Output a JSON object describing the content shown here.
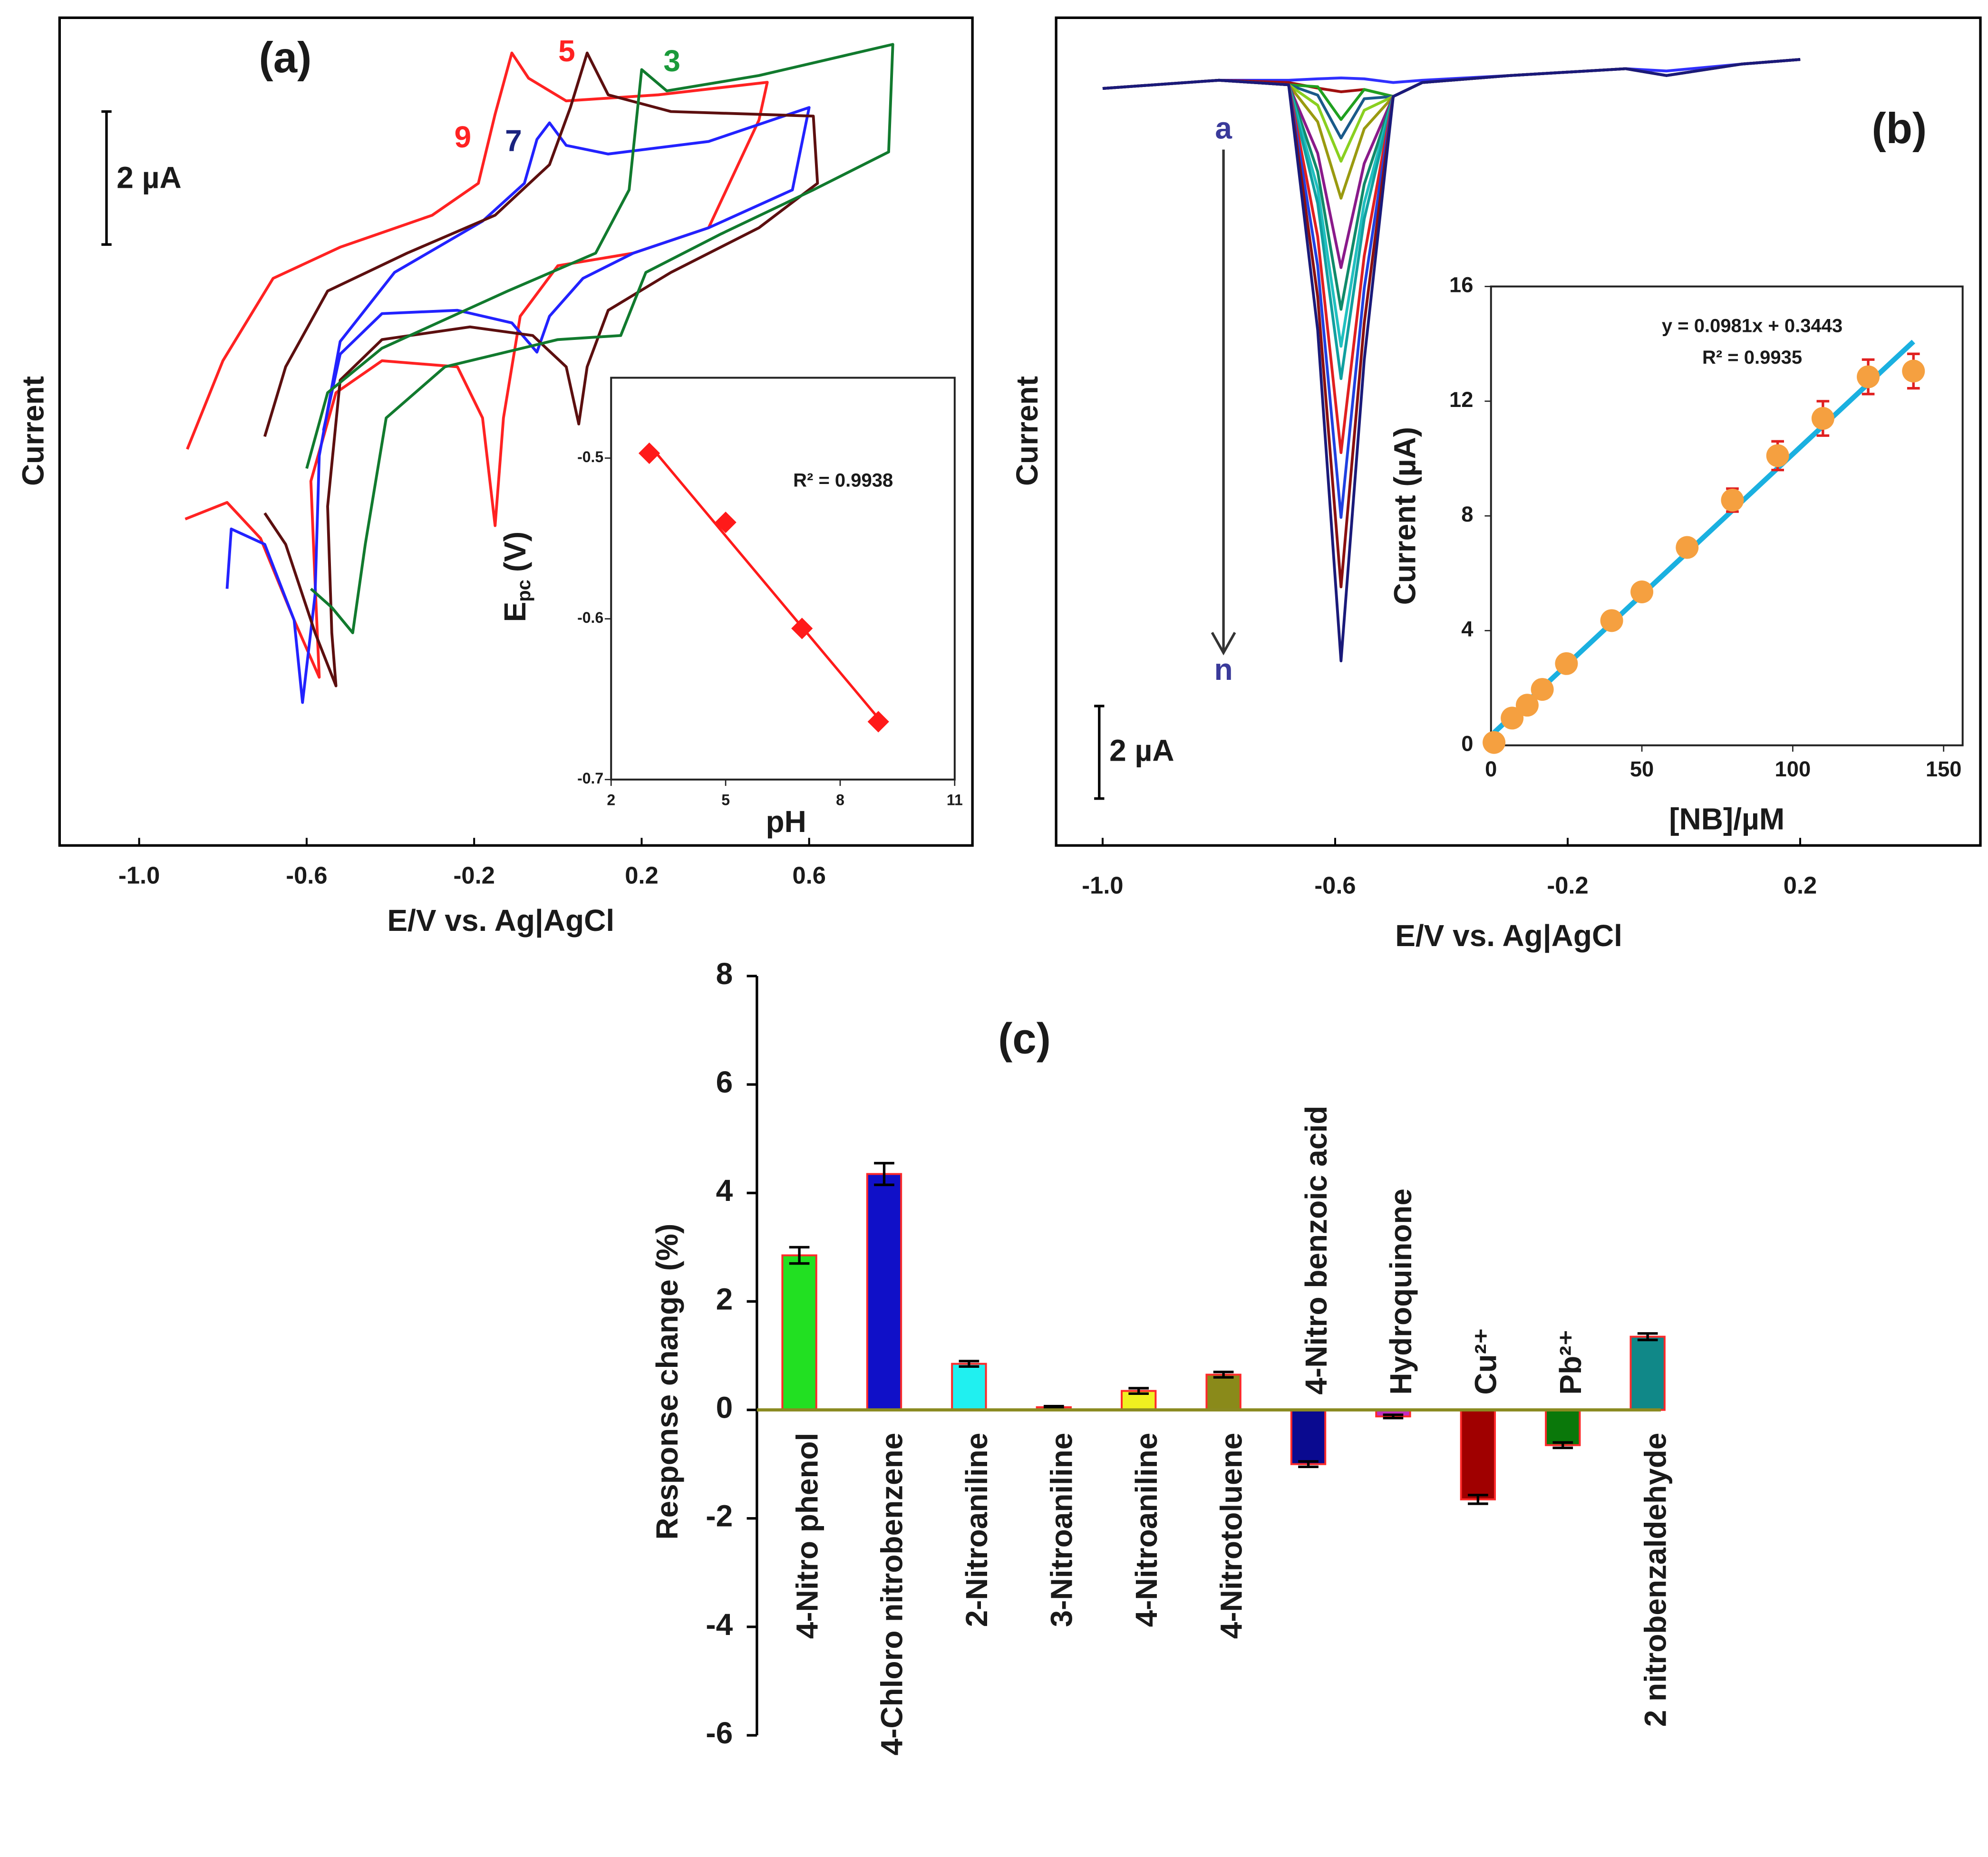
{
  "chart_data": [
    {
      "type": "line",
      "title": "(a)",
      "xlabel": "E/V vs. Ag|AgCl",
      "ylabel": "Current",
      "scale_bar": {
        "value": 2,
        "label": "2 µA"
      },
      "xlim": [
        -1.19,
        0.99
      ],
      "ylim": [
        -5.1,
        7.35
      ],
      "xticks": [
        {
          "value": -1,
          "label": "-1.0"
        },
        -0.6,
        -0.2,
        0.2,
        0.6
      ],
      "series": [
        {
          "name": "9",
          "color": "#ff2222",
          "x": [
            -0.885,
            -0.8,
            -0.68,
            -0.52,
            -0.3,
            -0.19,
            -0.15,
            -0.11,
            -0.07,
            0.02,
            0.24,
            0.5,
            0.48,
            0.36,
            0.18,
            0,
            -0.09,
            -0.13,
            -0.15,
            -0.18,
            -0.24,
            -0.42,
            -0.53,
            -0.59,
            -0.58,
            -0.57,
            -0.63,
            -0.71,
            -0.79,
            -0.89
          ],
          "values": [
            0.86,
            2.19,
            3.43,
            3.9,
            4.38,
            4.86,
            5.9,
            6.82,
            6.44,
            6.1,
            6.19,
            6.38,
            5.81,
            4.19,
            3.81,
            3.62,
            2.86,
            1.33,
            -0.29,
            1.33,
            2.1,
            2.19,
            1.71,
            0.38,
            -1.14,
            -2.57,
            -1.71,
            -0.48,
            0.06,
            -0.19
          ]
        },
        {
          "name": "7",
          "color": "#2222ff",
          "x": [
            -0.79,
            -0.78,
            -0.7,
            -0.63,
            -0.61,
            -0.58,
            -0.57,
            -0.52,
            -0.39,
            -0.18,
            -0.08,
            -0.05,
            -0.02,
            0.02,
            0.12,
            0.36,
            0.6,
            0.56,
            0.36,
            0.18,
            0.06,
            -0.02,
            -0.05,
            -0.11,
            -0.24,
            -0.42,
            -0.52,
            -0.56
          ],
          "values": [
            -1.24,
            -0.34,
            -0.57,
            -1.71,
            -2.95,
            -1.33,
            0.76,
            2.48,
            3.52,
            4.29,
            4.86,
            5.52,
            5.77,
            5.43,
            5.3,
            5.49,
            6.0,
            4.76,
            4.19,
            3.81,
            3.43,
            2.86,
            2.32,
            2.76,
            2.95,
            2.9,
            2.29,
            1.14
          ]
        },
        {
          "name": "5",
          "color": "#5c0f0f",
          "x": [
            -0.7,
            -0.65,
            -0.55,
            -0.36,
            -0.15,
            -0.02,
            0.03,
            0.07,
            0.12,
            0.27,
            0.61,
            0.62,
            0.48,
            0.27,
            0.12,
            0.07,
            0.05,
            0.02,
            -0.06,
            -0.21,
            -0.42,
            -0.52,
            -0.55,
            -0.54,
            -0.53,
            -0.58,
            -0.65,
            -0.7
          ],
          "values": [
            1.05,
            2.1,
            3.24,
            3.81,
            4.38,
            5.14,
            6.0,
            6.82,
            6.19,
            5.94,
            5.87,
            4.86,
            4.19,
            3.52,
            2.95,
            2.1,
            1.24,
            2.1,
            2.57,
            2.7,
            2.51,
            1.9,
            0,
            -1.9,
            -2.7,
            -1.9,
            -0.57,
            -0.1
          ]
        },
        {
          "name": "3",
          "color": "#117a2e",
          "x": [
            -0.6,
            -0.55,
            -0.42,
            -0.12,
            0.09,
            0.17,
            0.2,
            0.26,
            0.48,
            0.8,
            0.79,
            0.61,
            0.39,
            0.21,
            0.15,
            0,
            -0.27,
            -0.41,
            -0.46,
            -0.49,
            -0.54,
            -0.59
          ],
          "values": [
            0.57,
            1.71,
            2.38,
            3.24,
            3.81,
            4.76,
            6.57,
            6.25,
            6.48,
            6.95,
            5.33,
            4.76,
            4.1,
            3.52,
            2.57,
            2.51,
            2.1,
            1.33,
            -0.57,
            -1.9,
            -1.52,
            -1.24
          ]
        }
      ]
    },
    {
      "type": "scatter",
      "xlabel": "pH",
      "ylabel": {
        "text": "E",
        "sub": "pc",
        "unit": "(V)"
      },
      "annotation": "R² = 0.9938",
      "color": "#ff1a1a",
      "xlim": [
        2,
        11
      ],
      "ylim": [
        -0.7,
        -0.45
      ],
      "xticks": [
        2,
        5,
        8,
        11
      ],
      "yticks": [
        -0.5,
        -0.6,
        -0.7
      ],
      "x": [
        3,
        5,
        7,
        9
      ],
      "values": [
        -0.497,
        -0.54,
        -0.606,
        -0.664
      ]
    },
    {
      "type": "line",
      "title": "(b)",
      "xlabel": "E/V vs. Ag|AgCl",
      "ylabel": "Current",
      "scale_bar": {
        "value": 2,
        "label": "2 µA"
      },
      "xlim": [
        -1.08,
        0.51
      ],
      "ylim": [
        -16.99,
        0.9
      ],
      "xticks": [
        {
          "value": -1,
          "label": "-1.0"
        },
        -0.6,
        -0.2,
        0.2
      ],
      "x": [
        -1.0,
        -0.8,
        -0.68,
        -0.63,
        -0.59,
        -0.55,
        -0.5,
        -0.45,
        -0.3,
        -0.1,
        -0.03,
        0.1,
        0.2
      ],
      "series": [
        {
          "name": "a",
          "color": "#3030ff",
          "values": [
            -0.63,
            -0.45,
            -0.45,
            -0.42,
            -0.4,
            -0.42,
            -0.5,
            -0.45,
            -0.35,
            -0.2,
            -0.25,
            -0.1,
            0
          ]
        },
        {
          "color": "#a01010",
          "values": [
            -0.63,
            -0.45,
            -0.5,
            -0.62,
            -0.7,
            -0.65,
            -0.8,
            -0.5,
            -0.35,
            -0.2,
            -0.35,
            -0.1,
            0
          ]
        },
        {
          "color": "#20a020",
          "values": [
            -0.63,
            -0.45,
            -0.55,
            -0.59,
            -1.3,
            -0.65,
            -0.8,
            -0.5,
            -0.35,
            -0.2,
            -0.35,
            -0.1,
            0
          ]
        },
        {
          "color": "#1a5a8a",
          "values": [
            -0.63,
            -0.45,
            -0.55,
            -0.77,
            -1.7,
            -0.85,
            -0.8,
            -0.5,
            -0.35,
            -0.2,
            -0.35,
            -0.1,
            0
          ]
        },
        {
          "color": "#8ad020",
          "values": [
            -0.63,
            -0.45,
            -0.55,
            -0.99,
            -2.2,
            -1.1,
            -0.8,
            -0.5,
            -0.35,
            -0.2,
            -0.35,
            -0.1,
            0
          ]
        },
        {
          "color": "#9a9a10",
          "values": [
            -0.63,
            -0.45,
            -0.55,
            -1.35,
            -3.0,
            -1.5,
            -0.8,
            -0.5,
            -0.35,
            -0.2,
            -0.35,
            -0.1,
            0
          ]
        },
        {
          "color": "#8a1a8a",
          "values": [
            -0.63,
            -0.45,
            -0.55,
            -2.03,
            -4.5,
            -2.25,
            -0.8,
            -0.5,
            -0.35,
            -0.2,
            -0.35,
            -0.1,
            0
          ]
        },
        {
          "color": "#108a6a",
          "values": [
            -0.63,
            -0.45,
            -0.55,
            -2.43,
            -5.4,
            -2.7,
            -0.8,
            -0.5,
            -0.35,
            -0.2,
            -0.35,
            -0.1,
            0
          ]
        },
        {
          "color": "#20c0c0",
          "values": [
            -0.63,
            -0.45,
            -0.55,
            -2.79,
            -6.2,
            -3.1,
            -0.8,
            -0.5,
            -0.35,
            -0.2,
            -0.35,
            -0.1,
            0
          ]
        },
        {
          "color": "#10a0a0",
          "values": [
            -0.63,
            -0.45,
            -0.55,
            -3.11,
            -6.9,
            -3.45,
            -0.8,
            -0.5,
            -0.35,
            -0.2,
            -0.35,
            -0.1,
            0
          ]
        },
        {
          "color": "#e02020",
          "values": [
            -0.63,
            -0.45,
            -0.55,
            -3.83,
            -8.5,
            -4.25,
            -0.8,
            -0.5,
            -0.35,
            -0.2,
            -0.35,
            -0.1,
            0
          ]
        },
        {
          "color": "#2040e0",
          "values": [
            -0.63,
            -0.45,
            -0.55,
            -4.46,
            -9.9,
            -4.95,
            -0.8,
            -0.5,
            -0.35,
            -0.2,
            -0.35,
            -0.1,
            0
          ]
        },
        {
          "color": "#8a1010",
          "values": [
            -0.63,
            -0.45,
            -0.55,
            -5.13,
            -11.4,
            -5.7,
            -0.8,
            -0.5,
            -0.35,
            -0.2,
            -0.35,
            -0.1,
            0
          ]
        },
        {
          "name": "n",
          "color": "#1a1a7a",
          "values": [
            -0.63,
            -0.45,
            -0.55,
            -5.85,
            -13.0,
            -6.5,
            -0.8,
            -0.5,
            -0.35,
            -0.2,
            -0.35,
            -0.1,
            0
          ]
        }
      ]
    },
    {
      "type": "scatter",
      "xlabel": "[NB]/µM",
      "ylabel": "Current (µA)",
      "annotations": [
        "y = 0.0981x + 0.3443",
        "R² = 0.9935"
      ],
      "fit": {
        "slope": 0.0981,
        "intercept": 0.3443,
        "color": "#1ab0e0"
      },
      "color": "#f5a040",
      "error_color": "#e02020",
      "xlim": [
        0,
        156.3
      ],
      "ylim": [
        0,
        16
      ],
      "xticks": [
        0,
        50,
        100,
        150
      ],
      "yticks": [
        0,
        4,
        8,
        12,
        16
      ],
      "x": [
        1,
        7,
        12,
        17,
        25,
        40,
        50,
        65,
        80,
        95,
        110,
        125,
        140
      ],
      "values": [
        0.1,
        0.95,
        1.4,
        1.95,
        2.85,
        4.35,
        5.35,
        6.9,
        8.55,
        10.1,
        11.4,
        12.85,
        13.05
      ],
      "errors": [
        0.15,
        0.2,
        0.2,
        0.2,
        0.2,
        0.2,
        0.2,
        0.25,
        0.4,
        0.5,
        0.6,
        0.6,
        0.6
      ]
    },
    {
      "type": "bar",
      "title": "(c)",
      "ylabel": "Response change (%)",
      "categories": [
        "4-Nitro phenol",
        "4-Chloro nitrobenzene",
        "2-Nitroaniline",
        "3-Nitroaniline",
        "4-Nitroaniline",
        "4-Nitrotoluene",
        "4-Nitro benzoic acid",
        "Hydroquinone",
        "Cu²⁺",
        "Pb²⁺",
        "2 nitrobenzaldehyde"
      ],
      "values": [
        2.85,
        4.35,
        0.85,
        0.05,
        0.35,
        0.65,
        -1.0,
        -0.12,
        -1.65,
        -0.65,
        1.35
      ],
      "errors": [
        0.15,
        0.2,
        0.05,
        0.02,
        0.05,
        0.05,
        0.05,
        0.03,
        0.08,
        0.05,
        0.06
      ],
      "colors": [
        "#22e022",
        "#1010c8",
        "#20f0f0",
        "#e040a0",
        "#f0f020",
        "#8a8a1a",
        "#0a0a90",
        "#c030c0",
        "#a00000",
        "#0a780a",
        "#108888"
      ],
      "edge_color": "#ff2a2a",
      "axis_color": "#8a8a20",
      "ylim": [
        -6,
        8
      ],
      "yticks": [
        8,
        6,
        4,
        2,
        0,
        -2,
        -4,
        -6
      ]
    }
  ]
}
